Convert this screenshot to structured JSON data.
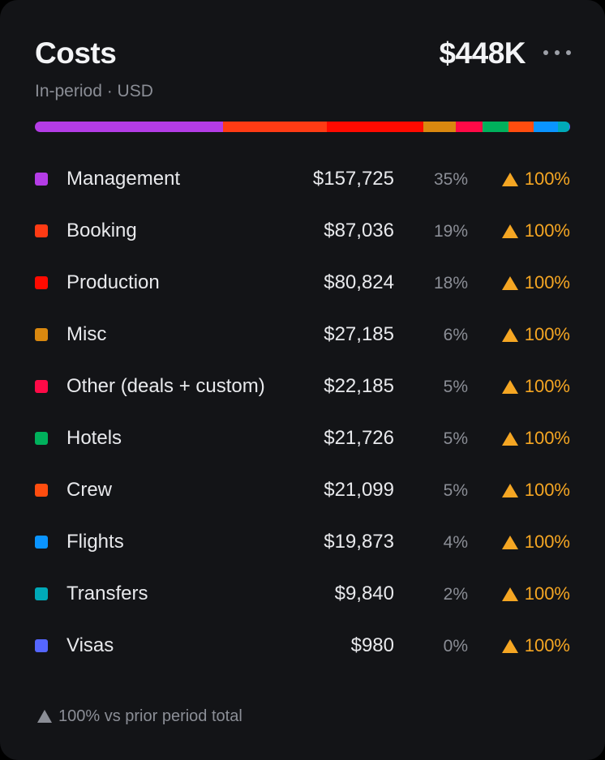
{
  "header": {
    "title": "Costs",
    "subtitle": "In-period · USD",
    "total": "$448K",
    "more_icon": "more-horizontal-icon"
  },
  "items": [
    {
      "label": "Management",
      "amount": "$157,725",
      "share": 35,
      "pct": "35%",
      "change": "100%",
      "color": "#b43ce6"
    },
    {
      "label": "Booking",
      "amount": "$87,036",
      "share": 19,
      "pct": "19%",
      "change": "100%",
      "color": "#ff3b14"
    },
    {
      "label": "Production",
      "amount": "$80,824",
      "share": 18,
      "pct": "18%",
      "change": "100%",
      "color": "#ff0a00"
    },
    {
      "label": "Misc",
      "amount": "$27,185",
      "share": 6,
      "pct": "6%",
      "change": "100%",
      "color": "#d9880f"
    },
    {
      "label": "Other (deals + custom)",
      "amount": "$22,185",
      "share": 5,
      "pct": "5%",
      "change": "100%",
      "color": "#ff0a47"
    },
    {
      "label": "Hotels",
      "amount": "$21,726",
      "share": 5,
      "pct": "5%",
      "change": "100%",
      "color": "#00b15c"
    },
    {
      "label": "Crew",
      "amount": "$21,099",
      "share": 5,
      "pct": "5%",
      "change": "100%",
      "color": "#ff4d0f"
    },
    {
      "label": "Flights",
      "amount": "$19,873",
      "share": 4,
      "pct": "4%",
      "change": "100%",
      "color": "#0a94ff"
    },
    {
      "label": "Transfers",
      "amount": "$9,840",
      "share": 2,
      "pct": "2%",
      "change": "100%",
      "color": "#00a9b8"
    },
    {
      "label": "Visas",
      "amount": "$980",
      "share": 0,
      "pct": "0%",
      "change": "100%",
      "color": "#5566ff"
    }
  ],
  "colors": {
    "background": "#131417",
    "up": "#f5a623",
    "muted": "#8b8e96"
  },
  "footer": {
    "note": "100% vs prior period total",
    "icon": "triangle-up-icon"
  }
}
